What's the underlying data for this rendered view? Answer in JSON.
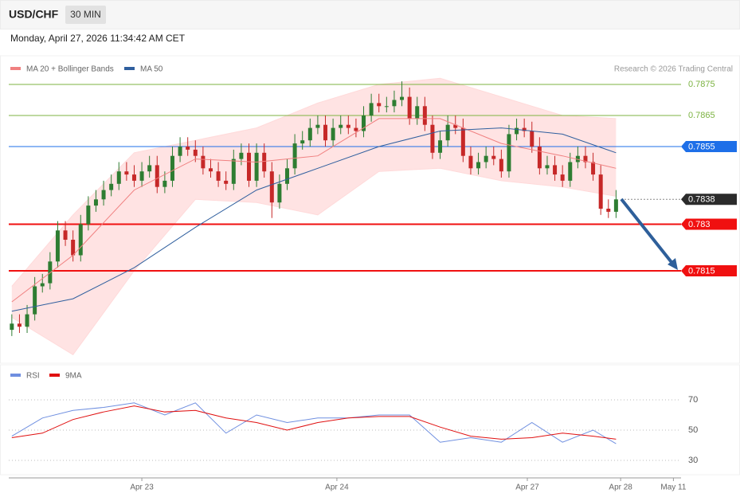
{
  "chart_data": {
    "type": "candlestick",
    "title": "USD/CHF",
    "interval": "30 MIN",
    "subtitle": "Monday, April 27, 2026 11:34:42 AM CET",
    "credit": "Research © 2026 Trading Central",
    "ylim": [
      0.7786,
      0.7878
    ],
    "xlim": [
      -0.4,
      87.5
    ],
    "xticks": [
      {
        "value": 17,
        "label": "Apr 23"
      },
      {
        "value": 42.5,
        "label": "Apr 24"
      },
      {
        "value": 67.4,
        "label": "Apr 27"
      },
      {
        "value": 79.6,
        "label": "Apr 28"
      },
      {
        "value": 86.5,
        "label": "May 11"
      }
    ],
    "up_color": "#2e7d32",
    "down_color": "#c62828",
    "open": [
      0.7796,
      0.7798,
      0.7797,
      0.7801,
      0.781,
      0.7811,
      0.7818,
      0.7828,
      0.7825,
      0.782,
      0.783,
      0.7836,
      0.7838,
      0.7841,
      0.7843,
      0.7847,
      0.7846,
      0.7844,
      0.7847,
      0.7849,
      0.7842,
      0.7844,
      0.7852,
      0.7855,
      0.7854,
      0.7852,
      0.7848,
      0.7847,
      0.7844,
      0.7843,
      0.7851,
      0.7853,
      0.7844,
      0.7853,
      0.7847,
      0.7837,
      0.7843,
      0.7848,
      0.7856,
      0.7857,
      0.7861,
      0.7862,
      0.7857,
      0.7861,
      0.7862,
      0.7861,
      0.786,
      0.7865,
      0.7869,
      0.7868,
      0.7868,
      0.787,
      0.7871,
      0.7864,
      0.7868,
      0.7862,
      0.7853,
      0.7857,
      0.7862,
      0.7861,
      0.7852,
      0.7848,
      0.785,
      0.7852,
      0.7851,
      0.7847,
      0.7859,
      0.7861,
      0.786,
      0.7855,
      0.7848,
      0.7849,
      0.7846,
      0.7844,
      0.785,
      0.7852,
      0.785,
      0.7846,
      0.7835,
      0.7834
    ],
    "high": [
      0.7801,
      0.7801,
      0.7804,
      0.7813,
      0.7814,
      0.7821,
      0.7831,
      0.7831,
      0.7828,
      0.7833,
      0.7839,
      0.7841,
      0.7844,
      0.7846,
      0.785,
      0.785,
      0.7849,
      0.785,
      0.7852,
      0.7852,
      0.7847,
      0.7855,
      0.7858,
      0.7858,
      0.7857,
      0.7855,
      0.7851,
      0.785,
      0.7847,
      0.7854,
      0.7856,
      0.7856,
      0.7856,
      0.7856,
      0.785,
      0.7846,
      0.7851,
      0.7859,
      0.786,
      0.7864,
      0.7865,
      0.7865,
      0.7864,
      0.7865,
      0.7865,
      0.7864,
      0.7868,
      0.7872,
      0.7872,
      0.7871,
      0.7873,
      0.7876,
      0.7874,
      0.7871,
      0.7871,
      0.7865,
      0.786,
      0.7865,
      0.7865,
      0.7864,
      0.7855,
      0.7853,
      0.7855,
      0.7855,
      0.7854,
      0.7862,
      0.7864,
      0.7864,
      0.7863,
      0.7858,
      0.7852,
      0.7852,
      0.7849,
      0.7853,
      0.7855,
      0.7855,
      0.7853,
      0.7849,
      0.7838,
      0.7841
    ],
    "low": [
      0.7794,
      0.7795,
      0.7795,
      0.7799,
      0.7808,
      0.7809,
      0.7816,
      0.7823,
      0.7818,
      0.7818,
      0.7828,
      0.7834,
      0.7836,
      0.7839,
      0.7841,
      0.7844,
      0.7842,
      0.7842,
      0.7845,
      0.784,
      0.784,
      0.7842,
      0.785,
      0.7852,
      0.785,
      0.7846,
      0.7845,
      0.7842,
      0.7841,
      0.7841,
      0.7849,
      0.7842,
      0.7842,
      0.7845,
      0.7832,
      0.7835,
      0.7841,
      0.7846,
      0.7854,
      0.7855,
      0.7859,
      0.7855,
      0.7855,
      0.7859,
      0.7859,
      0.7858,
      0.7858,
      0.7863,
      0.7866,
      0.7866,
      0.7866,
      0.7868,
      0.7862,
      0.7862,
      0.786,
      0.7851,
      0.7851,
      0.7855,
      0.7859,
      0.785,
      0.7846,
      0.7846,
      0.7848,
      0.7849,
      0.7845,
      0.7845,
      0.7857,
      0.7858,
      0.7853,
      0.7846,
      0.7846,
      0.7844,
      0.7842,
      0.7842,
      0.7848,
      0.7848,
      0.7844,
      0.7833,
      0.7832,
      0.7832
    ],
    "close": [
      0.7798,
      0.7797,
      0.7801,
      0.781,
      0.7811,
      0.7818,
      0.7828,
      0.7825,
      0.782,
      0.783,
      0.7836,
      0.7838,
      0.7841,
      0.7843,
      0.7847,
      0.7846,
      0.7844,
      0.7847,
      0.7849,
      0.7842,
      0.7844,
      0.7852,
      0.7855,
      0.7854,
      0.7852,
      0.7848,
      0.7847,
      0.7844,
      0.7843,
      0.7851,
      0.7853,
      0.7844,
      0.7853,
      0.7847,
      0.7837,
      0.7843,
      0.7848,
      0.7856,
      0.7857,
      0.7861,
      0.7862,
      0.7857,
      0.7861,
      0.7862,
      0.7861,
      0.786,
      0.7865,
      0.7869,
      0.7868,
      0.7868,
      0.787,
      0.7871,
      0.7864,
      0.7868,
      0.7862,
      0.7853,
      0.7857,
      0.7862,
      0.7861,
      0.7852,
      0.7848,
      0.785,
      0.7852,
      0.7851,
      0.7847,
      0.7859,
      0.7861,
      0.786,
      0.7855,
      0.7848,
      0.7849,
      0.7846,
      0.7844,
      0.785,
      0.7852,
      0.785,
      0.7846,
      0.7835,
      0.7834,
      0.7838
    ],
    "overlays": [
      {
        "name": "MA 20 + Bollinger Bands",
        "color": "#f08080",
        "band_color": "#ffdada",
        "x": [
          0,
          8,
          16,
          24,
          32,
          40,
          48,
          56,
          64,
          72,
          79
        ],
        "values": [
          0.7805,
          0.782,
          0.7841,
          0.7851,
          0.785,
          0.7852,
          0.7864,
          0.7864,
          0.7856,
          0.7852,
          0.7848
        ],
        "upper": [
          0.781,
          0.7833,
          0.7853,
          0.7857,
          0.7861,
          0.7869,
          0.7875,
          0.7877,
          0.7871,
          0.7865,
          0.7864
        ],
        "lower": [
          0.78,
          0.7788,
          0.7815,
          0.7838,
          0.7837,
          0.7833,
          0.7847,
          0.7848,
          0.7844,
          0.7842,
          0.7839
        ]
      },
      {
        "name": "MA 50",
        "color": "#2f5f9e",
        "x": [
          0,
          8,
          16,
          24,
          32,
          40,
          48,
          56,
          64,
          72,
          79
        ],
        "values": [
          0.7802,
          0.7806,
          0.7816,
          0.7829,
          0.7841,
          0.7848,
          0.7855,
          0.786,
          0.7861,
          0.7859,
          0.7853
        ]
      }
    ],
    "levels": [
      {
        "value": 0.7875,
        "color": "#7cb342",
        "tag": false,
        "line_style": "solid"
      },
      {
        "value": 0.7865,
        "color": "#7cb342",
        "tag": false,
        "line_style": "solid"
      },
      {
        "value": 0.7855,
        "color": "#1e6fe8",
        "tag": true,
        "line_style": "solid"
      },
      {
        "value": 0.7838,
        "color": "#2b2b2b",
        "tag": true,
        "line_style": "dotted"
      },
      {
        "value": 0.783,
        "color": "#f01010",
        "tag": true,
        "line_style": "thick"
      },
      {
        "value": 0.7815,
        "color": "#f01010",
        "tag": true,
        "line_style": "thick"
      }
    ],
    "rsi": {
      "ylim": [
        23.7,
        76.3
      ],
      "yticks": [
        70,
        50,
        30
      ],
      "series": [
        {
          "name": "RSI",
          "color": "#6f8fe0",
          "x": [
            0,
            4,
            8,
            12,
            16,
            20,
            24,
            28,
            32,
            36,
            40,
            44,
            48,
            52,
            56,
            60,
            64,
            68,
            72,
            76,
            79
          ],
          "values": [
            46,
            58,
            63,
            65,
            68,
            60,
            68,
            48,
            60,
            55,
            58,
            58,
            60,
            60,
            42,
            45,
            42,
            55,
            42,
            50,
            41
          ]
        },
        {
          "name": "9MA",
          "color": "#e01010",
          "x": [
            0,
            4,
            8,
            12,
            16,
            20,
            24,
            28,
            32,
            36,
            40,
            44,
            48,
            52,
            56,
            60,
            64,
            68,
            72,
            76,
            79
          ],
          "values": [
            45,
            48,
            57,
            62,
            66,
            62,
            63,
            58,
            55,
            50,
            55,
            58,
            59,
            59,
            52,
            46,
            44,
            45,
            48,
            46,
            44
          ]
        }
      ]
    }
  }
}
